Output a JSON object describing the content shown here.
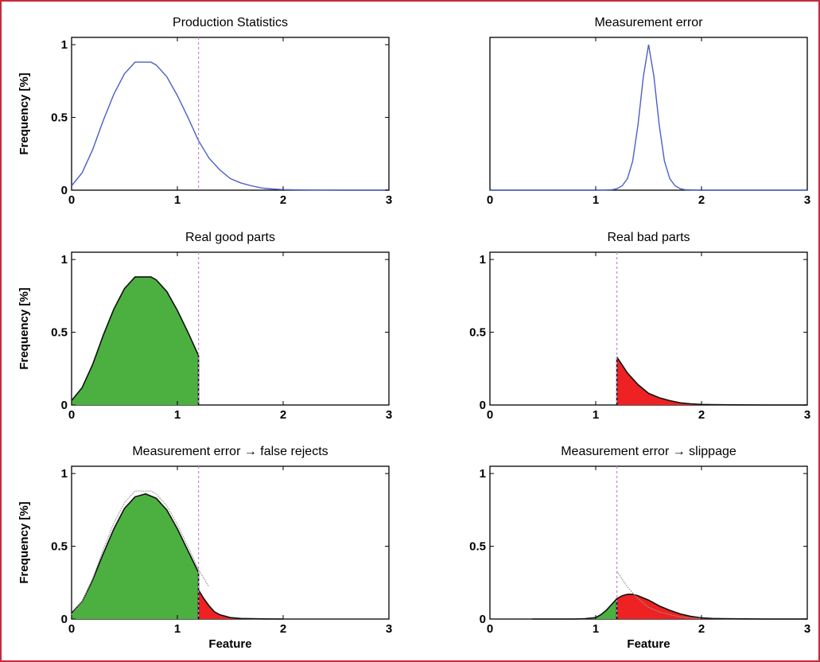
{
  "colors": {
    "frame": "#c8283c",
    "curve": "#4a5fc8",
    "threshold": "#cc88dd",
    "good_fill": "#4cb040",
    "bad_fill": "#ee2222",
    "outline": "#111111",
    "reference": "#999999"
  },
  "threshold": 1.2,
  "chart_data": [
    {
      "type": "line",
      "title": "Production Statistics",
      "ylabel": "Frequency  [%]",
      "xlabel": "",
      "xlim": [
        0,
        3
      ],
      "ylim": [
        0,
        1.05
      ],
      "xticks": [
        "0",
        "1",
        "2",
        "3"
      ],
      "yticks": [
        "0",
        "0.5",
        "1"
      ],
      "series": [
        {
          "x": [
            0,
            0.1,
            0.2,
            0.3,
            0.4,
            0.5,
            0.6,
            0.7,
            0.75,
            0.8,
            0.9,
            1.0,
            1.1,
            1.2,
            1.3,
            1.4,
            1.5,
            1.6,
            1.7,
            1.8,
            1.9,
            2.0,
            2.1,
            2.3,
            2.6,
            3.0
          ],
          "y": [
            0.03,
            0.12,
            0.28,
            0.48,
            0.66,
            0.8,
            0.88,
            0.88,
            0.88,
            0.86,
            0.78,
            0.65,
            0.5,
            0.34,
            0.22,
            0.14,
            0.08,
            0.05,
            0.03,
            0.015,
            0.008,
            0.004,
            0.002,
            0.001,
            0,
            0
          ]
        }
      ]
    },
    {
      "type": "line",
      "title": "Measurement error",
      "ylabel": "",
      "xlabel": "",
      "xlim": [
        0,
        3
      ],
      "ylim": [
        0,
        1.05
      ],
      "xticks": [
        "0",
        "1",
        "2",
        "3"
      ],
      "yticks": [],
      "series": [
        {
          "x": [
            0,
            1.0,
            1.15,
            1.2,
            1.25,
            1.3,
            1.35,
            1.4,
            1.45,
            1.5,
            1.55,
            1.6,
            1.65,
            1.7,
            1.75,
            1.8,
            1.85,
            2.0,
            3.0
          ],
          "y": [
            0,
            0,
            0.003,
            0.01,
            0.03,
            0.08,
            0.2,
            0.45,
            0.78,
            1.0,
            0.78,
            0.45,
            0.2,
            0.08,
            0.03,
            0.01,
            0.003,
            0,
            0
          ]
        }
      ]
    },
    {
      "type": "area",
      "title": "Real good parts",
      "ylabel": "Frequency  [%]",
      "xlabel": "",
      "xlim": [
        0,
        3
      ],
      "ylim": [
        0,
        1.05
      ],
      "xticks": [
        "0",
        "1",
        "2",
        "3"
      ],
      "yticks": [
        "0",
        "0.5",
        "1"
      ],
      "series": [
        {
          "name": "good",
          "x": [
            0,
            0.1,
            0.2,
            0.3,
            0.4,
            0.5,
            0.6,
            0.7,
            0.75,
            0.8,
            0.9,
            1.0,
            1.1,
            1.2
          ],
          "y": [
            0.03,
            0.12,
            0.28,
            0.48,
            0.66,
            0.8,
            0.88,
            0.88,
            0.88,
            0.86,
            0.78,
            0.65,
            0.5,
            0.34
          ]
        }
      ]
    },
    {
      "type": "area",
      "title": "Real bad parts",
      "ylabel": "",
      "xlabel": "",
      "xlim": [
        0,
        3
      ],
      "ylim": [
        0,
        1.05
      ],
      "xticks": [
        "0",
        "1",
        "2",
        "3"
      ],
      "yticks": [
        "0",
        "0.5",
        "1"
      ],
      "series": [
        {
          "name": "bad",
          "x": [
            1.2,
            1.3,
            1.4,
            1.5,
            1.6,
            1.7,
            1.8,
            1.9,
            2.0,
            2.1,
            2.3,
            2.6,
            3.0
          ],
          "y": [
            0.33,
            0.22,
            0.14,
            0.08,
            0.05,
            0.03,
            0.015,
            0.008,
            0.004,
            0.002,
            0.001,
            0,
            0
          ]
        }
      ]
    },
    {
      "type": "area",
      "title": "Measurement error → false rejects",
      "ylabel": "Frequency  [%]",
      "xlabel": "Feature",
      "xlim": [
        0,
        3
      ],
      "ylim": [
        0,
        1.05
      ],
      "xticks": [
        "0",
        "1",
        "2",
        "3"
      ],
      "yticks": [
        "0",
        "0.5",
        "1"
      ],
      "series": [
        {
          "name": "good",
          "x": [
            0,
            0.1,
            0.2,
            0.3,
            0.4,
            0.5,
            0.6,
            0.7,
            0.8,
            0.9,
            1.0,
            1.1,
            1.2
          ],
          "y": [
            0.04,
            0.12,
            0.27,
            0.45,
            0.62,
            0.76,
            0.84,
            0.86,
            0.83,
            0.75,
            0.62,
            0.47,
            0.32
          ]
        },
        {
          "name": "bad",
          "x": [
            1.2,
            1.25,
            1.3,
            1.35,
            1.4,
            1.5,
            1.6,
            1.8,
            2.0
          ],
          "y": [
            0.2,
            0.14,
            0.09,
            0.05,
            0.03,
            0.01,
            0.004,
            0.001,
            0
          ]
        },
        {
          "name": "reference",
          "x": [
            0,
            0.1,
            0.2,
            0.3,
            0.4,
            0.5,
            0.6,
            0.7,
            0.75,
            0.8,
            0.9,
            1.0,
            1.1,
            1.2,
            1.3
          ],
          "y": [
            0.03,
            0.12,
            0.28,
            0.48,
            0.66,
            0.8,
            0.88,
            0.88,
            0.88,
            0.86,
            0.78,
            0.65,
            0.5,
            0.34,
            0.22
          ]
        }
      ]
    },
    {
      "type": "area",
      "title": "Measurement error → slippage",
      "ylabel": "",
      "xlabel": "Feature",
      "xlim": [
        0,
        3
      ],
      "ylim": [
        0,
        1.05
      ],
      "xticks": [
        "0",
        "1",
        "2",
        "3"
      ],
      "yticks": [
        "0",
        "0.5",
        "1"
      ],
      "series": [
        {
          "name": "good",
          "x": [
            0.4,
            0.8,
            0.9,
            1.0,
            1.05,
            1.1,
            1.15,
            1.2
          ],
          "y": [
            0,
            0,
            0.002,
            0.01,
            0.03,
            0.06,
            0.1,
            0.14
          ]
        },
        {
          "name": "bad",
          "x": [
            1.2,
            1.25,
            1.3,
            1.35,
            1.4,
            1.5,
            1.6,
            1.7,
            1.8,
            1.9,
            2.0,
            2.1,
            2.2,
            2.4,
            2.6,
            2.8,
            3.0
          ],
          "y": [
            0.14,
            0.16,
            0.17,
            0.17,
            0.16,
            0.13,
            0.09,
            0.06,
            0.035,
            0.018,
            0.008,
            0.004,
            0.002,
            0.001,
            0,
            0,
            0
          ]
        },
        {
          "name": "reference",
          "x": [
            1.2,
            1.3,
            1.4,
            1.5,
            1.6,
            1.7,
            1.8,
            1.9,
            2.0
          ],
          "y": [
            0.33,
            0.22,
            0.14,
            0.08,
            0.05,
            0.03,
            0.015,
            0.008,
            0.004
          ]
        }
      ]
    }
  ]
}
